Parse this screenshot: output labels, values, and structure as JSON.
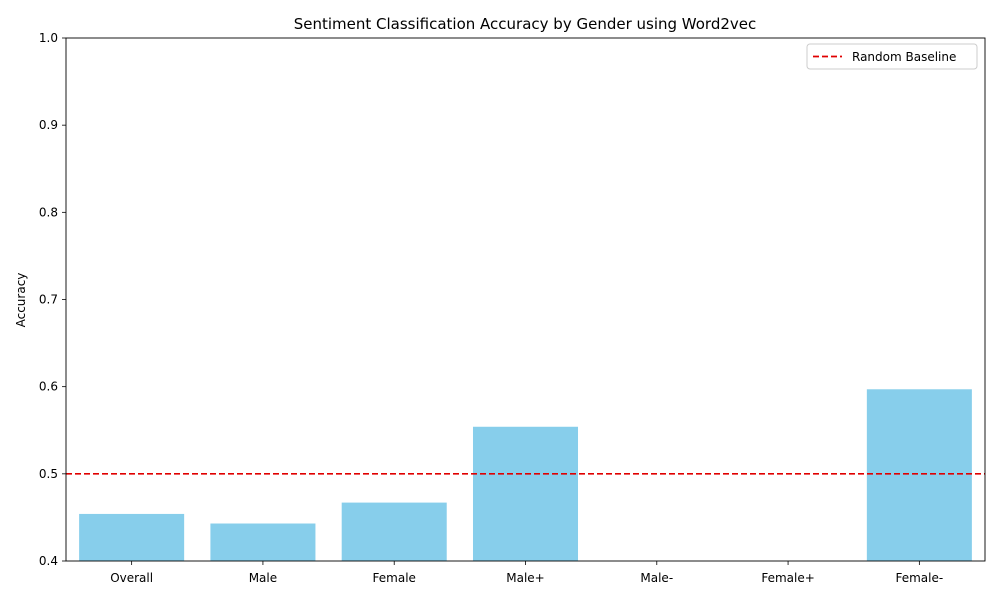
{
  "chart_data": {
    "type": "bar",
    "title": "Sentiment Classification Accuracy by Gender using Word2vec",
    "xlabel": "",
    "ylabel": "Accuracy",
    "categories": [
      "Overall",
      "Male",
      "Female",
      "Male+",
      "Male-",
      "Female+",
      "Female-"
    ],
    "values": [
      0.454,
      0.443,
      0.467,
      0.554,
      0.4,
      0.4,
      0.597
    ],
    "ylim": [
      0.4,
      1.0
    ],
    "yticks": [
      "0.4",
      "0.5",
      "0.6",
      "0.7",
      "0.8",
      "0.9",
      "1.0"
    ],
    "bar_color": "#87CEEB",
    "baseline": {
      "name": "Random Baseline",
      "value": 0.5,
      "color": "#e00000",
      "style": "dashed"
    },
    "legend_position": "top-right",
    "grid": false
  }
}
